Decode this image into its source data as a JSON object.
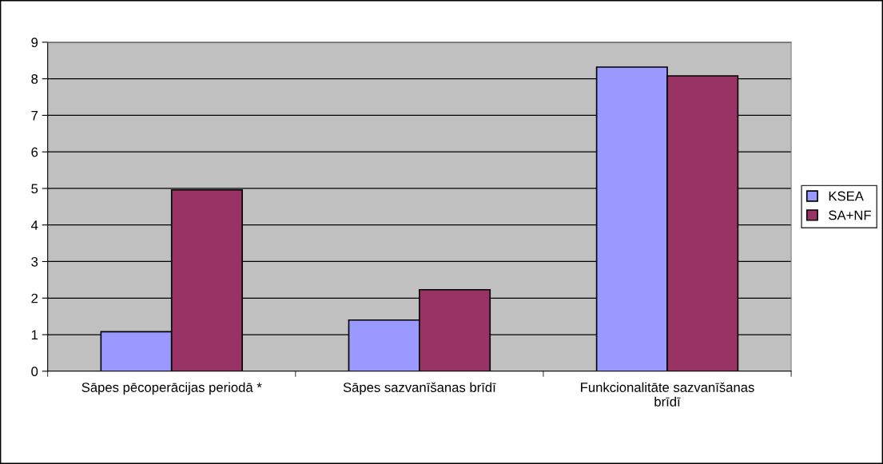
{
  "chart_data": {
    "type": "bar",
    "categories": [
      "Sāpes pēcoperācijas periodā *",
      "Sāpes sazvanīšanas brīdī",
      "Funkcionalitāte sazvanīšanas brīdī"
    ],
    "series": [
      {
        "name": "KSEA",
        "color": "#9999ff",
        "values": [
          1.08,
          1.4,
          8.32
        ]
      },
      {
        "name": "SA+NF",
        "color": "#993366",
        "values": [
          4.96,
          2.23,
          8.08
        ]
      }
    ],
    "ylim": [
      0,
      9
    ],
    "yticks": [
      0,
      1,
      2,
      3,
      4,
      5,
      6,
      7,
      8,
      9
    ],
    "grid": "y",
    "legend": "right"
  }
}
